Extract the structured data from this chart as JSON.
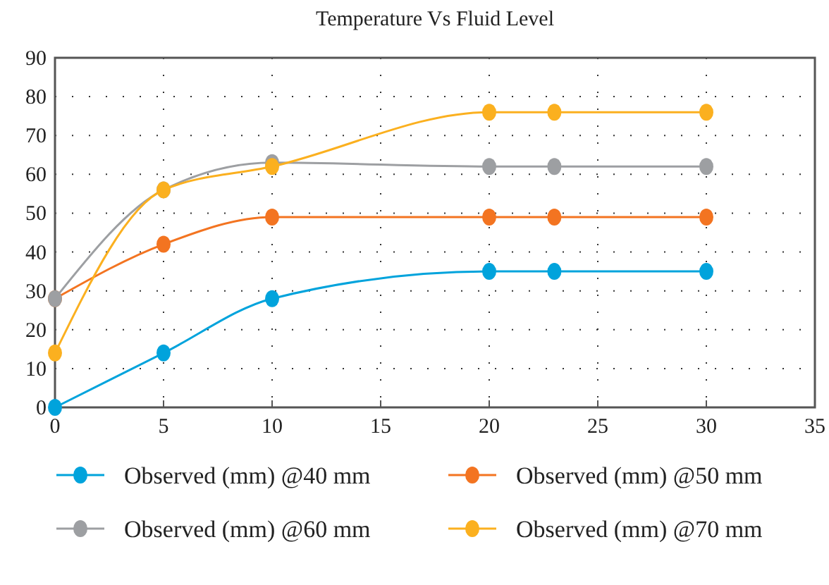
{
  "chart_data": {
    "type": "line",
    "title": "Temperature Vs Fluid Level",
    "x": [
      0,
      5,
      10,
      20,
      23,
      30
    ],
    "xlim": [
      0,
      35
    ],
    "xticks": [
      0,
      5,
      10,
      15,
      20,
      25,
      30,
      35
    ],
    "ylim": [
      0,
      90
    ],
    "yticks": [
      0,
      10,
      20,
      30,
      40,
      50,
      60,
      70,
      80,
      90
    ],
    "grid": true,
    "legend": "bottom",
    "marker": "circle",
    "line_style": "solid",
    "series": [
      {
        "name": "Observed (mm) @40 mm",
        "color": "#00a3dc",
        "values": [
          0,
          14,
          28,
          35,
          35,
          35
        ]
      },
      {
        "name": "Observed (mm) @50 mm",
        "color": "#f37421",
        "values": [
          28,
          42,
          49,
          49,
          49,
          49
        ]
      },
      {
        "name": "Observed (mm) @60 mm",
        "color": "#9d9fa2",
        "values": [
          28,
          56,
          63,
          62,
          62,
          62
        ]
      },
      {
        "name": "Observed (mm) @70 mm",
        "color": "#fbb01f",
        "values": [
          14,
          56,
          62,
          76,
          76,
          76
        ]
      }
    ]
  }
}
